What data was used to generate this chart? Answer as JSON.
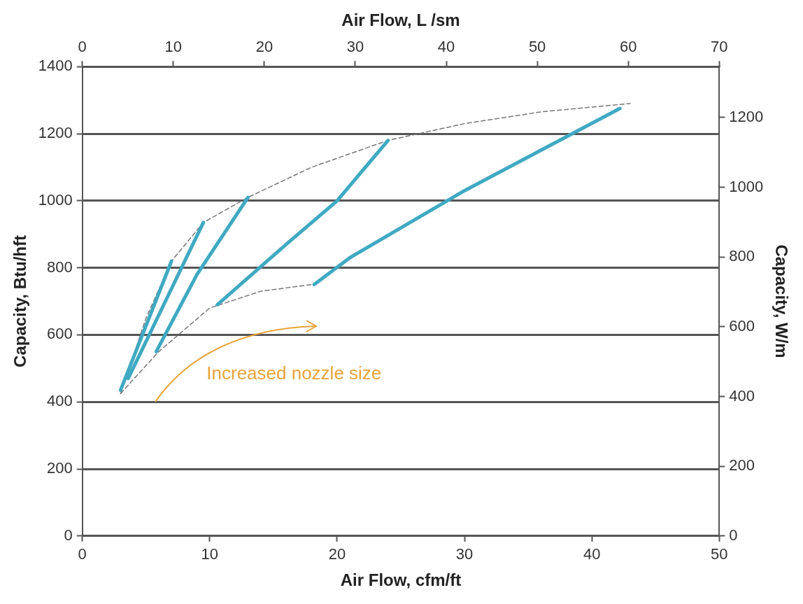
{
  "chart_data": {
    "type": "line",
    "xlabel": "Air Flow, cfm/ft",
    "x2label": "Air Flow, L /sm",
    "ylabel": "Capacity, Btu/hft",
    "y2label": "Capacity, W/m",
    "xlim": [
      0,
      50
    ],
    "xticks": [
      0,
      10,
      20,
      30,
      40,
      50
    ],
    "x2lim": [
      0,
      70
    ],
    "x2ticks": [
      0,
      10,
      20,
      30,
      40,
      50,
      60,
      70
    ],
    "ylim": [
      0,
      1400
    ],
    "yticks": [
      0,
      200,
      400,
      600,
      800,
      1000,
      1200,
      1400
    ],
    "y2lim": [
      0,
      1346
    ],
    "y2ticks": [
      0,
      200,
      400,
      600,
      800,
      1000,
      1200
    ],
    "grid": "y",
    "legend": false,
    "marker": "none",
    "annotations": [
      "Increased nozzle size"
    ],
    "series": [
      {
        "color": "#3fa9c2",
        "line_style": "solid",
        "x": [
          3,
          7
        ],
        "values": [
          435,
          820
        ]
      },
      {
        "color": "#3fa9c2",
        "line_style": "solid",
        "x": [
          3.6,
          9.5
        ],
        "values": [
          470,
          935
        ]
      },
      {
        "color": "#3fa9c2",
        "line_style": "solid",
        "x": [
          5.8,
          9,
          13
        ],
        "values": [
          550,
          780,
          1010
        ]
      },
      {
        "color": "#3fa9c2",
        "line_style": "solid",
        "x": [
          10.6,
          16,
          20,
          24
        ],
        "values": [
          690,
          870,
          1000,
          1180
        ]
      },
      {
        "color": "#3fa9c2",
        "line_style": "solid",
        "x": [
          18.2,
          21,
          30,
          42.2
        ],
        "values": [
          750,
          830,
          1030,
          1275
        ]
      },
      {
        "color": "#777777",
        "line_style": "dashed",
        "x": [
          3,
          5,
          7,
          9.5,
          13,
          18,
          24,
          30,
          36,
          43
        ],
        "values": [
          425,
          650,
          820,
          935,
          1010,
          1100,
          1180,
          1230,
          1265,
          1290
        ]
      },
      {
        "color": "#777777",
        "line_style": "dashed",
        "x": [
          3,
          6,
          10,
          14,
          18
        ],
        "values": [
          425,
          550,
          680,
          730,
          750
        ]
      }
    ]
  }
}
